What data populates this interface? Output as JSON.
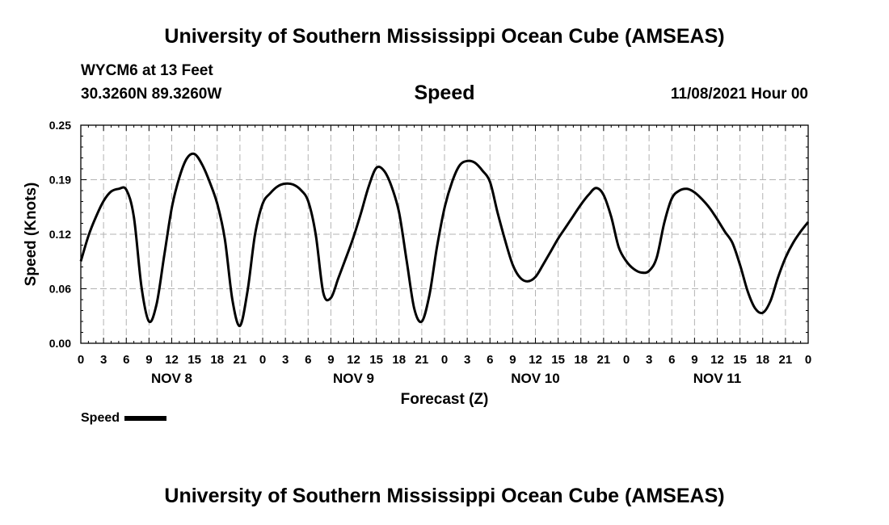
{
  "header": {
    "title": "University of Southern Mississippi Ocean Cube (AMSEAS)",
    "station": "WYCM6 at 13 Feet",
    "coords": "30.3260N  89.3260W",
    "date": "11/08/2021 Hour 00",
    "footer_title": "University of Southern Mississippi Ocean Cube (AMSEAS)"
  },
  "chart_data": {
    "type": "line",
    "title": "Speed",
    "xlabel": "Forecast (Z)",
    "ylabel": "Speed (Knots)",
    "ylim": [
      0,
      0.25
    ],
    "xlim": [
      0,
      96
    ],
    "yticks": [
      "0.00",
      "0.06",
      "0.12",
      "0.19",
      "0.25"
    ],
    "ytick_values": [
      0,
      0.0625,
      0.125,
      0.1875,
      0.25
    ],
    "xtick_labels": [
      "0",
      "3",
      "6",
      "9",
      "12",
      "15",
      "18",
      "21",
      "0",
      "3",
      "6",
      "9",
      "12",
      "15",
      "18",
      "21",
      "0",
      "3",
      "6",
      "9",
      "12",
      "15",
      "18",
      "21",
      "0",
      "3",
      "6",
      "9",
      "12",
      "15",
      "18",
      "21",
      "0"
    ],
    "day_labels": [
      {
        "label": "NOV 8",
        "hour": 12
      },
      {
        "label": "NOV 9",
        "hour": 36
      },
      {
        "label": "NOV 10",
        "hour": 60
      },
      {
        "label": "NOV 11",
        "hour": 84
      }
    ],
    "legend": "Speed",
    "grid": true,
    "series": [
      {
        "name": "Speed",
        "x": [
          0,
          1,
          2,
          3,
          4,
          5,
          6,
          7,
          8,
          9,
          10,
          11,
          12,
          13,
          14,
          15,
          16,
          17,
          18,
          19,
          20,
          21,
          22,
          23,
          24,
          25,
          26,
          27,
          28,
          29,
          30,
          31,
          32,
          33,
          34,
          35,
          36,
          37,
          38,
          39,
          40,
          41,
          42,
          43,
          44,
          45,
          46,
          47,
          48,
          49,
          50,
          51,
          52,
          53,
          54,
          55,
          56,
          57,
          58,
          59,
          60,
          61,
          62,
          63,
          64,
          65,
          66,
          67,
          68,
          69,
          70,
          71,
          72,
          73,
          74,
          75,
          76,
          77,
          78,
          79,
          80,
          81,
          82,
          83,
          84,
          85,
          86,
          87,
          88,
          89,
          90,
          91,
          92,
          93,
          94,
          95,
          96
        ],
        "values": [
          0.094,
          0.123,
          0.145,
          0.163,
          0.174,
          0.177,
          0.176,
          0.145,
          0.065,
          0.025,
          0.045,
          0.1,
          0.155,
          0.19,
          0.212,
          0.217,
          0.205,
          0.185,
          0.16,
          0.12,
          0.05,
          0.02,
          0.06,
          0.125,
          0.16,
          0.172,
          0.18,
          0.183,
          0.182,
          0.176,
          0.163,
          0.125,
          0.058,
          0.052,
          0.075,
          0.098,
          0.122,
          0.15,
          0.18,
          0.201,
          0.198,
          0.18,
          0.15,
          0.095,
          0.04,
          0.025,
          0.055,
          0.11,
          0.155,
          0.185,
          0.204,
          0.209,
          0.207,
          0.198,
          0.185,
          0.15,
          0.118,
          0.09,
          0.075,
          0.071,
          0.076,
          0.09,
          0.105,
          0.12,
          0.133,
          0.146,
          0.159,
          0.17,
          0.178,
          0.17,
          0.145,
          0.11,
          0.094,
          0.085,
          0.081,
          0.083,
          0.098,
          0.138,
          0.166,
          0.175,
          0.177,
          0.173,
          0.165,
          0.155,
          0.142,
          0.128,
          0.115,
          0.09,
          0.06,
          0.04,
          0.035,
          0.048,
          0.075,
          0.098,
          0.115,
          0.128,
          0.139
        ]
      }
    ]
  }
}
